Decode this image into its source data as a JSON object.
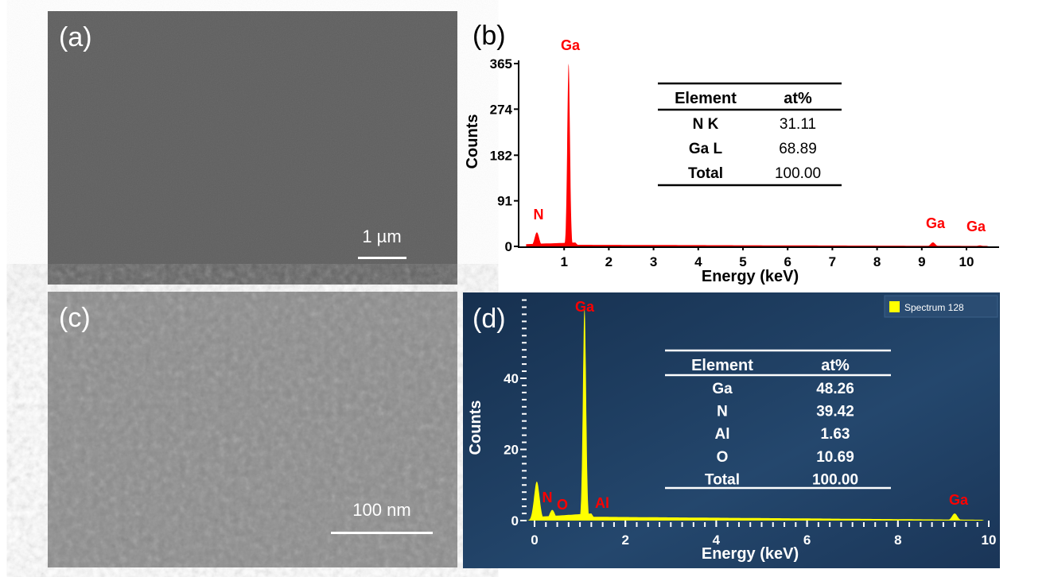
{
  "panels": {
    "a": {
      "label": "(a)",
      "scale_bar": "1 µm"
    },
    "c": {
      "label": "(c)",
      "scale_bar": "100 nm"
    }
  },
  "chart_data": [
    {
      "panel": "(b)",
      "type": "line",
      "xlabel": "Energy (keV)",
      "ylabel": "Counts",
      "xlim": [
        0,
        10.6
      ],
      "ylim": [
        0,
        365
      ],
      "xticks": [
        "1",
        "2",
        "3",
        "4",
        "5",
        "6",
        "7",
        "8",
        "9",
        "10"
      ],
      "yticks": [
        "0",
        "91",
        "182",
        "274",
        "365"
      ],
      "color": "#ff0000",
      "peaks": [
        {
          "label": "N",
          "energy": 0.39,
          "counts": 28
        },
        {
          "label": "Ga",
          "energy": 1.1,
          "counts": 365
        },
        {
          "label": "Ga",
          "energy": 9.25,
          "counts": 8
        },
        {
          "label": "Ga",
          "energy": 10.3,
          "counts": 2
        }
      ],
      "table": {
        "headers": [
          "Element",
          "at%"
        ],
        "rows": [
          [
            "N K",
            "31.11"
          ],
          [
            "Ga L",
            "68.89"
          ],
          [
            "Total",
            "100.00"
          ]
        ]
      }
    },
    {
      "panel": "(d)",
      "type": "line",
      "xlabel": "Energy (keV)",
      "ylabel": "Counts",
      "xlim": [
        0,
        10
      ],
      "ylim": [
        0,
        62
      ],
      "xticks": [
        "0",
        "2",
        "4",
        "6",
        "8",
        "10"
      ],
      "yticks": [
        "0",
        "20",
        "40"
      ],
      "color": "#ffff00",
      "background": "#1d3a5c",
      "legend": "Spectrum 128",
      "peaks": [
        {
          "label": "",
          "energy": 0.05,
          "counts": 11
        },
        {
          "label": "N",
          "energy": 0.39,
          "counts": 3
        },
        {
          "label": "O",
          "energy": 0.52,
          "counts": 1
        },
        {
          "label": "Ga",
          "energy": 1.1,
          "counts": 60
        },
        {
          "label": "Al",
          "energy": 1.49,
          "counts": 1
        },
        {
          "label": "Ga",
          "energy": 9.25,
          "counts": 2
        }
      ],
      "table": {
        "headers": [
          "Element",
          "at%"
        ],
        "rows": [
          [
            "Ga",
            "48.26"
          ],
          [
            "N",
            "39.42"
          ],
          [
            "Al",
            "1.63"
          ],
          [
            "O",
            "10.69"
          ],
          [
            "Total",
            "100.00"
          ]
        ]
      }
    }
  ]
}
